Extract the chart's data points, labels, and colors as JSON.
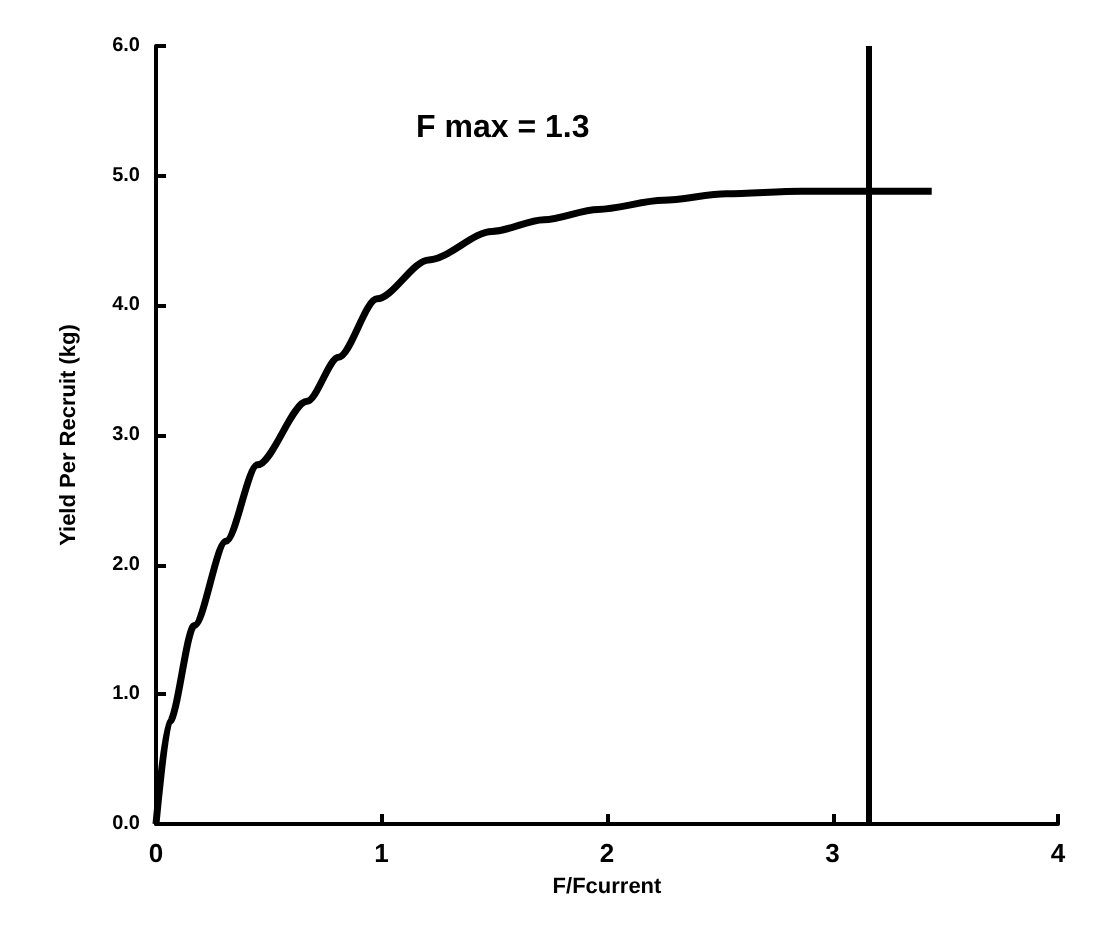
{
  "chart_data": {
    "type": "line",
    "xlabel": "F/Fcurrent",
    "ylabel": "Yield Per Recruit (kg)",
    "annotations": [
      "F max = 1.3"
    ],
    "x": [
      0,
      0.06,
      0.17,
      0.31,
      0.45,
      0.67,
      0.81,
      0.98,
      1.21,
      1.49,
      1.72,
      1.96,
      2.25,
      2.53,
      2.86,
      3.44
    ],
    "series": [
      {
        "color": "#000000",
        "values": [
          0,
          0.79,
          1.53,
          2.18,
          2.77,
          3.26,
          3.6,
          4.05,
          4.35,
          4.57,
          4.66,
          4.74,
          4.81,
          4.86,
          4.88,
          4.88
        ]
      }
    ],
    "xlim": [
      0,
      4
    ],
    "xticks": [
      0,
      1,
      2,
      3,
      4
    ],
    "ylim": [
      0,
      6
    ],
    "yticks": [
      {
        "value": 0,
        "label": "0.0"
      },
      {
        "value": 1,
        "label": "1.0"
      },
      {
        "value": 2,
        "label": "2.0"
      },
      {
        "value": 3,
        "label": "3.0"
      },
      {
        "value": 4,
        "label": "4.0"
      },
      {
        "value": 5,
        "label": "5.0"
      },
      {
        "value": 6,
        "label": "6.0"
      }
    ],
    "ref_lines": [
      {
        "axis": "x",
        "value": 3.16,
        "color": "#000000"
      }
    ],
    "grid": false,
    "marker": "none",
    "line_style": "solid"
  }
}
